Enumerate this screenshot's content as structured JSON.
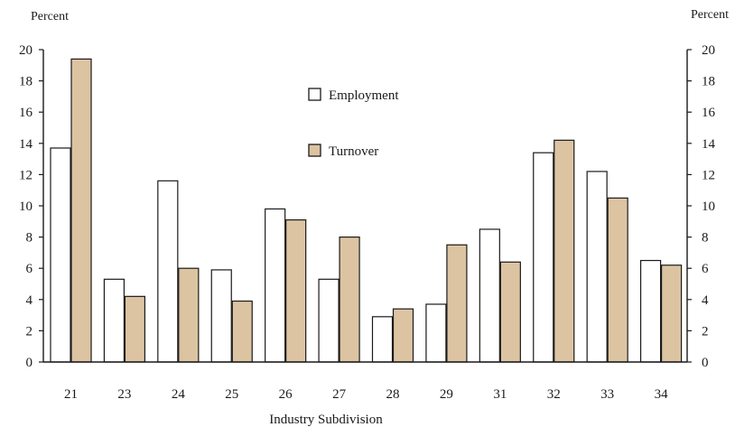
{
  "chart_data": {
    "type": "bar",
    "xlabel": "Industry Subdivision",
    "ylabel_left": "Percent",
    "ylabel_right": "Percent",
    "ylim": [
      0,
      20
    ],
    "yticks": [
      0,
      2,
      4,
      6,
      8,
      10,
      12,
      14,
      16,
      18,
      20
    ],
    "categories": [
      "21",
      "23",
      "24",
      "25",
      "26",
      "27",
      "28",
      "29",
      "31",
      "32",
      "33",
      "34"
    ],
    "series": [
      {
        "name": "Employment",
        "color": "#ffffff",
        "values": [
          13.7,
          5.3,
          11.6,
          5.9,
          9.8,
          5.3,
          2.9,
          3.7,
          8.5,
          13.4,
          12.2,
          6.5
        ]
      },
      {
        "name": "Turnover",
        "color": "#dcc4a2",
        "values": [
          19.4,
          4.2,
          6.0,
          3.9,
          9.1,
          8.0,
          3.4,
          7.5,
          6.4,
          14.2,
          10.5,
          6.2
        ]
      }
    ],
    "legend_position": "upper-center",
    "grid": false
  }
}
